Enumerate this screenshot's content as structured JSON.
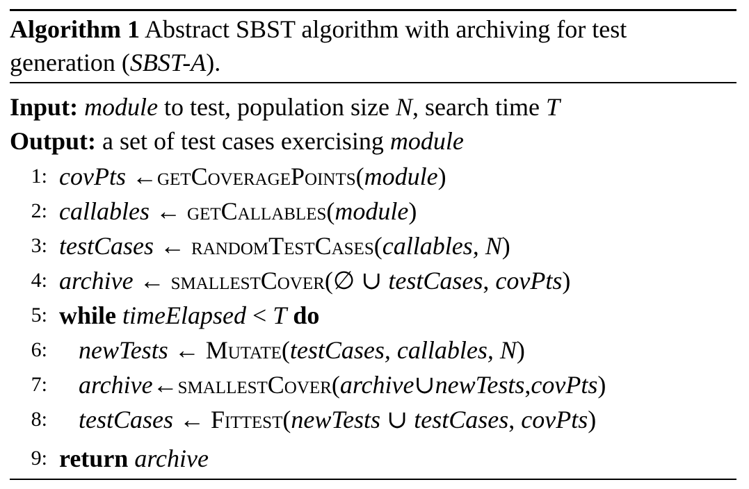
{
  "algorithm": {
    "label": "Algorithm 1",
    "caption_text": "Abstract SBST algorithm with archiving for test generation (",
    "caption_abbrev": "SBST-A",
    "caption_end": ")."
  },
  "input": {
    "keyword": "Input:",
    "var_module": "module",
    "text1": " to test, population size ",
    "var_N": "N",
    "text2": ", search time ",
    "var_T": "T"
  },
  "output": {
    "keyword": "Output:",
    "text": " a set of test cases exercising ",
    "var_module": "module"
  },
  "lines": [
    {
      "num": "1:",
      "lhs": "covPts",
      "arrow": " ←",
      "fn": "getCoveragePoints",
      "open": "(",
      "args": "module",
      "close": ")"
    },
    {
      "num": "2:",
      "lhs": "callables",
      "arrow": " ← ",
      "fn": "getCallables",
      "open": "(",
      "args": "module",
      "close": ")"
    },
    {
      "num": "3:",
      "lhs": "testCases",
      "arrow": " ← ",
      "fn": "randomTestCases",
      "open": "(",
      "args": "callables, N",
      "close": ")"
    },
    {
      "num": "4:",
      "lhs": "archive",
      "arrow": " ← ",
      "fn": "smallestCover",
      "open": "(∅ ∪ ",
      "args": "testCases",
      "sep": ", ",
      "args2": "covPts",
      "close": ")"
    },
    {
      "num": "5:",
      "kw": "while",
      "cond": "timeElapsed",
      "op": " < ",
      "var": "T",
      "kw2": "do"
    },
    {
      "num": "6:",
      "lhs": "newTests",
      "arrow": " ← ",
      "fn": "Mutate",
      "open": "(",
      "args": "testCases, callables, N",
      "close": ")"
    },
    {
      "num": "7:",
      "lhs": "archive",
      "arrow": "←",
      "fn": "smallestCover",
      "open": "(",
      "args": "archive",
      "sep": "∪",
      "args2": "newTests",
      "sep2": ",",
      "args3": "covPts",
      "close": ")"
    },
    {
      "num": "8:",
      "lhs": "testCases",
      "arrow": " ← ",
      "fn": "Fittest",
      "open": "(",
      "args": "newTests",
      "sep": " ∪ ",
      "args2": "testCases",
      "sep2": ", ",
      "args3": "covPts",
      "close": ")"
    },
    {
      "num": "9:",
      "kw": "return",
      "ret": "archive"
    }
  ]
}
